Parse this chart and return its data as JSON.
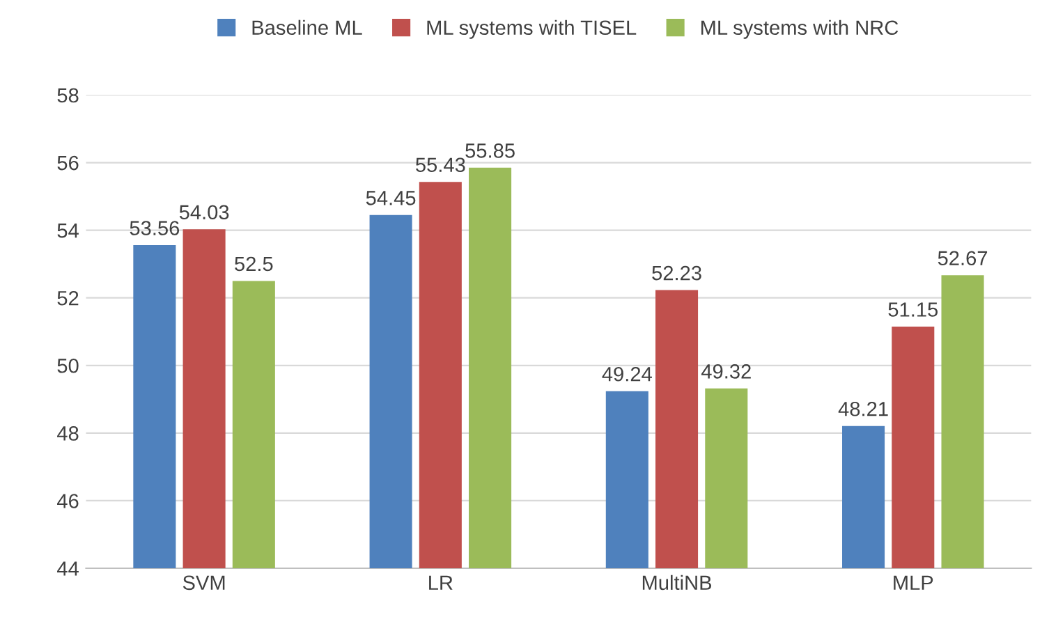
{
  "chart_data": {
    "type": "bar",
    "categories": [
      "SVM",
      "LR",
      "MultiNB",
      "MLP"
    ],
    "series": [
      {
        "name": "Baseline ML",
        "color": "#4f81bd",
        "values": [
          53.56,
          54.45,
          49.24,
          48.21
        ]
      },
      {
        "name": "ML systems with TISEL",
        "color": "#c0504d",
        "values": [
          54.03,
          55.43,
          52.23,
          51.15
        ]
      },
      {
        "name": "ML systems with NRC",
        "color": "#9bbb59",
        "values": [
          52.5,
          55.85,
          49.32,
          52.67
        ]
      }
    ],
    "ylim": [
      44,
      58
    ],
    "yticks": [
      44,
      46,
      48,
      50,
      52,
      54,
      56,
      58
    ],
    "grid": "y",
    "legend": "top",
    "data_labels": true
  }
}
